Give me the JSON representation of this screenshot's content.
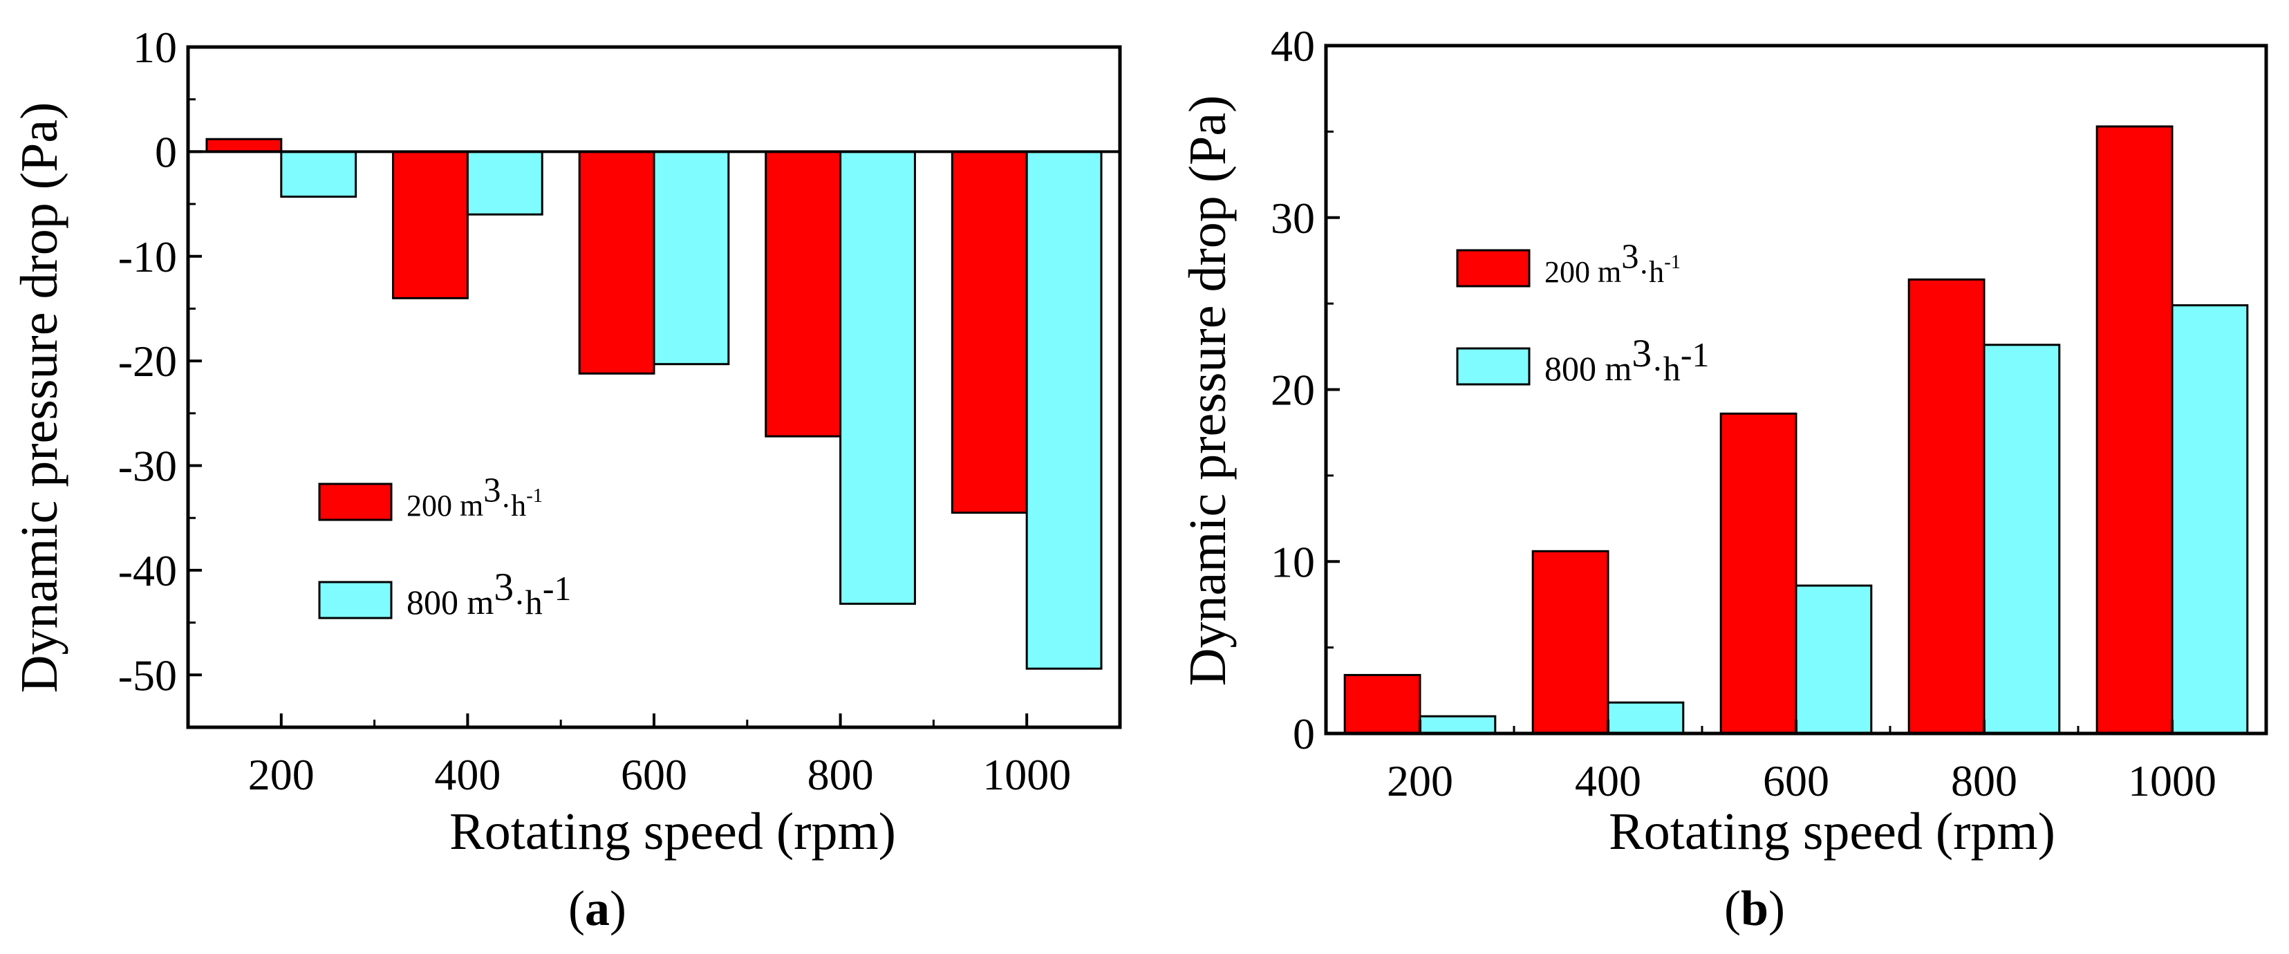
{
  "chart_data": [
    {
      "type": "bar",
      "panel_label": "a",
      "title": "",
      "xlabel": "Rotating speed (rpm)",
      "ylabel": "Dynamic pressure drop (Pa)",
      "categories": [
        "200",
        "400",
        "600",
        "800",
        "1000"
      ],
      "ylim": [
        -55,
        10
      ],
      "yticks": [
        10,
        0,
        -10,
        -20,
        -30,
        -40,
        -50
      ],
      "grid": false,
      "legend_position": "bottom-center",
      "series": [
        {
          "name": "200",
          "unit": "m",
          "exp": "3",
          "dot": "·h",
          "exp2": "-1",
          "color": "#ff0000",
          "values": [
            1.2,
            -14,
            -21.2,
            -27.2,
            -34.5
          ]
        },
        {
          "name": "800",
          "unit": "m",
          "exp": "3",
          "dot": "·h",
          "exp2": "-1",
          "color": "#7ffcff",
          "values": [
            -4.3,
            -6,
            -20.3,
            -43.2,
            -49.4
          ]
        }
      ]
    },
    {
      "type": "bar",
      "panel_label": "b",
      "title": "",
      "xlabel": "Rotating speed (rpm)",
      "ylabel": "Dynamic pressure drop (Pa)",
      "categories": [
        "200",
        "400",
        "600",
        "800",
        "1000"
      ],
      "ylim": [
        0,
        40
      ],
      "yticks": [
        0,
        10,
        20,
        30,
        40
      ],
      "grid": false,
      "legend_position": "top-left",
      "series": [
        {
          "name": "200",
          "unit": "m",
          "exp": "3",
          "dot": "·h",
          "exp2": "-1",
          "color": "#ff0000",
          "values": [
            3.4,
            10.6,
            18.6,
            26.4,
            35.3
          ]
        },
        {
          "name": "800",
          "unit": "m",
          "exp": "3",
          "dot": "·h",
          "exp2": "-1",
          "color": "#7ffcff",
          "values": [
            1.0,
            1.8,
            8.6,
            22.6,
            24.9
          ]
        }
      ]
    }
  ]
}
